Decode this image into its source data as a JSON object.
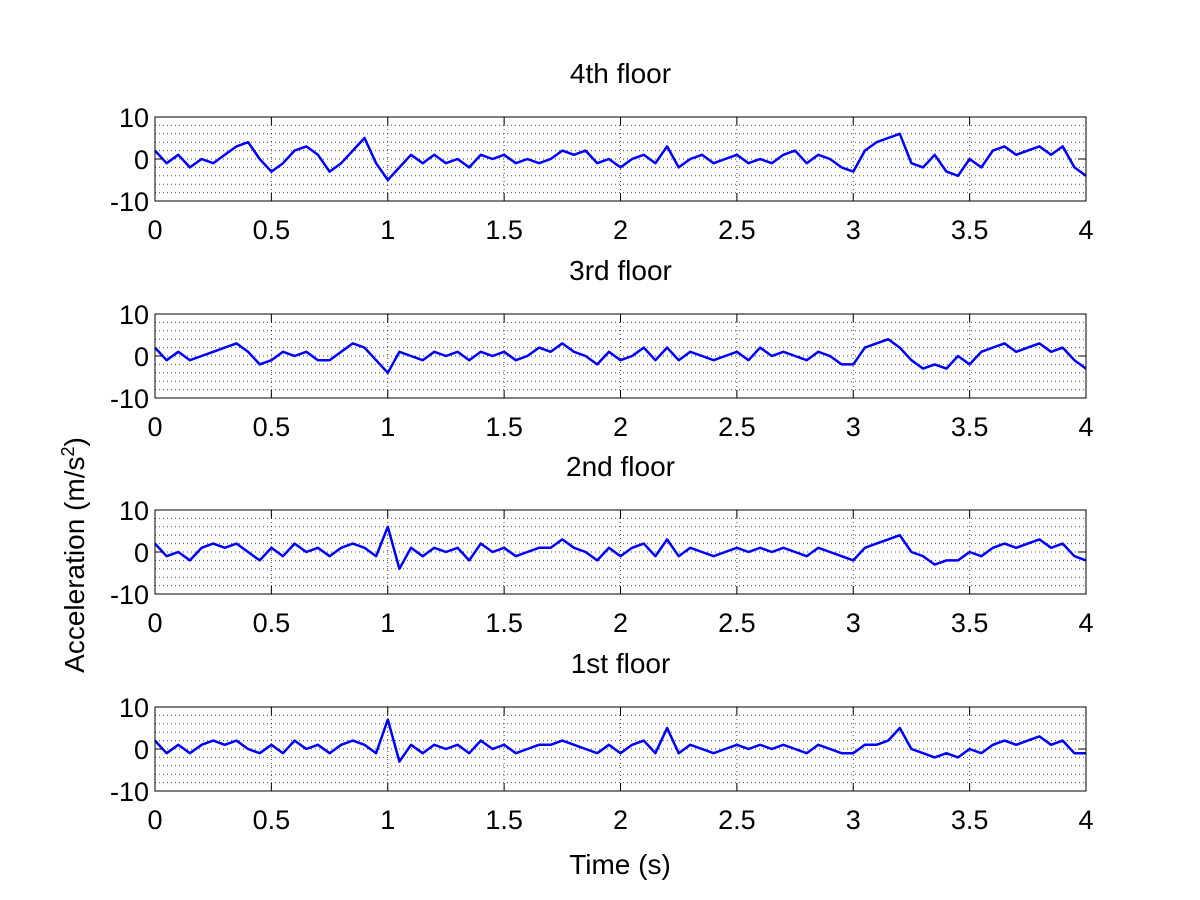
{
  "chart_data": {
    "type": "line",
    "xlabel": "Time (s)",
    "ylabel": "Acceleration (m/s",
    "ylabel_superscript": "2",
    "ylabel_close": ")",
    "line_color": "#0000ff",
    "grid": true,
    "panels": [
      {
        "title": "4th floor",
        "xlim": [
          0,
          4
        ],
        "ylim": [
          -10,
          10
        ],
        "xticks": [
          "0",
          "0.5",
          "1",
          "1.5",
          "2",
          "2.5",
          "3",
          "3.5",
          "4"
        ],
        "yticks": [
          "10",
          "0",
          "-10"
        ],
        "series": [
          {
            "x": [
              0,
              0.05,
              0.1,
              0.15,
              0.2,
              0.25,
              0.3,
              0.35,
              0.4,
              0.45,
              0.5,
              0.55,
              0.6,
              0.65,
              0.7,
              0.75,
              0.8,
              0.85,
              0.9,
              0.95,
              1.0,
              1.05,
              1.1,
              1.15,
              1.2,
              1.25,
              1.3,
              1.35,
              1.4,
              1.45,
              1.5,
              1.55,
              1.6,
              1.65,
              1.7,
              1.75,
              1.8,
              1.85,
              1.9,
              1.95,
              2.0,
              2.05,
              2.1,
              2.15,
              2.2,
              2.25,
              2.3,
              2.35,
              2.4,
              2.45,
              2.5,
              2.55,
              2.6,
              2.65,
              2.7,
              2.75,
              2.8,
              2.85,
              2.9,
              2.95,
              3.0,
              3.05,
              3.1,
              3.15,
              3.2,
              3.25,
              3.3,
              3.35,
              3.4,
              3.45,
              3.5,
              3.55,
              3.6,
              3.65,
              3.7,
              3.75,
              3.8,
              3.85,
              3.9,
              3.95,
              4.0
            ],
            "y": [
              2,
              -1,
              1,
              -2,
              0,
              -1,
              1,
              3,
              4,
              0,
              -3,
              -1,
              2,
              3,
              1,
              -3,
              -1,
              2,
              5,
              -1,
              -5,
              -2,
              1,
              -1,
              1,
              -1,
              0,
              -2,
              1,
              0,
              1,
              -1,
              0,
              -1,
              0,
              2,
              1,
              2,
              -1,
              0,
              -2,
              0,
              1,
              -1,
              3,
              -2,
              0,
              1,
              -1,
              0,
              1,
              -1,
              0,
              -1,
              1,
              2,
              -1,
              1,
              0,
              -2,
              -3,
              2,
              4,
              5,
              6,
              -1,
              -2,
              1,
              -3,
              -4,
              0,
              -2,
              2,
              3,
              1,
              2,
              3,
              1,
              3,
              -2,
              -4
            ]
          }
        ]
      },
      {
        "title": "3rd floor",
        "xlim": [
          0,
          4
        ],
        "ylim": [
          -10,
          10
        ],
        "xticks": [
          "0",
          "0.5",
          "1",
          "1.5",
          "2",
          "2.5",
          "3",
          "3.5",
          "4"
        ],
        "yticks": [
          "10",
          "0",
          "-10"
        ],
        "series": [
          {
            "x": [
              0,
              0.05,
              0.1,
              0.15,
              0.2,
              0.25,
              0.3,
              0.35,
              0.4,
              0.45,
              0.5,
              0.55,
              0.6,
              0.65,
              0.7,
              0.75,
              0.8,
              0.85,
              0.9,
              0.95,
              1.0,
              1.05,
              1.1,
              1.15,
              1.2,
              1.25,
              1.3,
              1.35,
              1.4,
              1.45,
              1.5,
              1.55,
              1.6,
              1.65,
              1.7,
              1.75,
              1.8,
              1.85,
              1.9,
              1.95,
              2.0,
              2.05,
              2.1,
              2.15,
              2.2,
              2.25,
              2.3,
              2.35,
              2.4,
              2.45,
              2.5,
              2.55,
              2.6,
              2.65,
              2.7,
              2.75,
              2.8,
              2.85,
              2.9,
              2.95,
              3.0,
              3.05,
              3.1,
              3.15,
              3.2,
              3.25,
              3.3,
              3.35,
              3.4,
              3.45,
              3.5,
              3.55,
              3.6,
              3.65,
              3.7,
              3.75,
              3.8,
              3.85,
              3.9,
              3.95,
              4.0
            ],
            "y": [
              2,
              -1,
              1,
              -1,
              0,
              1,
              2,
              3,
              1,
              -2,
              -1,
              1,
              0,
              1,
              -1,
              -1,
              1,
              3,
              2,
              -1,
              -4,
              1,
              0,
              -1,
              1,
              0,
              1,
              -1,
              1,
              0,
              1,
              -1,
              0,
              2,
              1,
              3,
              1,
              0,
              -2,
              1,
              -1,
              0,
              2,
              -1,
              2,
              -1,
              1,
              0,
              -1,
              0,
              1,
              -1,
              2,
              0,
              1,
              0,
              -1,
              1,
              0,
              -2,
              -2,
              2,
              3,
              4,
              2,
              -1,
              -3,
              -2,
              -3,
              0,
              -2,
              1,
              2,
              3,
              1,
              2,
              3,
              1,
              2,
              -1,
              -3
            ]
          }
        ]
      },
      {
        "title": "2nd floor",
        "xlim": [
          0,
          4
        ],
        "ylim": [
          -10,
          10
        ],
        "xticks": [
          "0",
          "0.5",
          "1",
          "1.5",
          "2",
          "2.5",
          "3",
          "3.5",
          "4"
        ],
        "yticks": [
          "10",
          "0",
          "-10"
        ],
        "series": [
          {
            "x": [
              0,
              0.05,
              0.1,
              0.15,
              0.2,
              0.25,
              0.3,
              0.35,
              0.4,
              0.45,
              0.5,
              0.55,
              0.6,
              0.65,
              0.7,
              0.75,
              0.8,
              0.85,
              0.9,
              0.95,
              1.0,
              1.05,
              1.1,
              1.15,
              1.2,
              1.25,
              1.3,
              1.35,
              1.4,
              1.45,
              1.5,
              1.55,
              1.6,
              1.65,
              1.7,
              1.75,
              1.8,
              1.85,
              1.9,
              1.95,
              2.0,
              2.05,
              2.1,
              2.15,
              2.2,
              2.25,
              2.3,
              2.35,
              2.4,
              2.45,
              2.5,
              2.55,
              2.6,
              2.65,
              2.7,
              2.75,
              2.8,
              2.85,
              2.9,
              2.95,
              3.0,
              3.05,
              3.1,
              3.15,
              3.2,
              3.25,
              3.3,
              3.35,
              3.4,
              3.45,
              3.5,
              3.55,
              3.6,
              3.65,
              3.7,
              3.75,
              3.8,
              3.85,
              3.9,
              3.95,
              4.0
            ],
            "y": [
              2,
              -1,
              0,
              -2,
              1,
              2,
              1,
              2,
              0,
              -2,
              1,
              -1,
              2,
              0,
              1,
              -1,
              1,
              2,
              1,
              -1,
              6,
              -4,
              1,
              -1,
              1,
              0,
              1,
              -2,
              2,
              0,
              1,
              -1,
              0,
              1,
              1,
              3,
              1,
              0,
              -2,
              1,
              -1,
              1,
              2,
              -1,
              3,
              -1,
              1,
              0,
              -1,
              0,
              1,
              0,
              1,
              0,
              1,
              0,
              -1,
              1,
              0,
              -1,
              -2,
              1,
              2,
              3,
              4,
              0,
              -1,
              -3,
              -2,
              -2,
              0,
              -1,
              1,
              2,
              1,
              2,
              3,
              1,
              2,
              -1,
              -2
            ]
          }
        ]
      },
      {
        "title": "1st floor",
        "xlim": [
          0,
          4
        ],
        "ylim": [
          -10,
          10
        ],
        "xticks": [
          "0",
          "0.5",
          "1",
          "1.5",
          "2",
          "2.5",
          "3",
          "3.5",
          "4"
        ],
        "yticks": [
          "10",
          "0",
          "-10"
        ],
        "series": [
          {
            "x": [
              0,
              0.05,
              0.1,
              0.15,
              0.2,
              0.25,
              0.3,
              0.35,
              0.4,
              0.45,
              0.5,
              0.55,
              0.6,
              0.65,
              0.7,
              0.75,
              0.8,
              0.85,
              0.9,
              0.95,
              1.0,
              1.05,
              1.1,
              1.15,
              1.2,
              1.25,
              1.3,
              1.35,
              1.4,
              1.45,
              1.5,
              1.55,
              1.6,
              1.65,
              1.7,
              1.75,
              1.8,
              1.85,
              1.9,
              1.95,
              2.0,
              2.05,
              2.1,
              2.15,
              2.2,
              2.25,
              2.3,
              2.35,
              2.4,
              2.45,
              2.5,
              2.55,
              2.6,
              2.65,
              2.7,
              2.75,
              2.8,
              2.85,
              2.9,
              2.95,
              3.0,
              3.05,
              3.1,
              3.15,
              3.2,
              3.25,
              3.3,
              3.35,
              3.4,
              3.45,
              3.5,
              3.55,
              3.6,
              3.65,
              3.7,
              3.75,
              3.8,
              3.85,
              3.9,
              3.95,
              4.0
            ],
            "y": [
              2,
              -1,
              1,
              -1,
              1,
              2,
              1,
              2,
              0,
              -1,
              1,
              -1,
              2,
              0,
              1,
              -1,
              1,
              2,
              1,
              -1,
              7,
              -3,
              1,
              -1,
              1,
              0,
              1,
              -1,
              2,
              0,
              1,
              -1,
              0,
              1,
              1,
              2,
              1,
              0,
              -1,
              1,
              -1,
              1,
              2,
              -1,
              5,
              -1,
              1,
              0,
              -1,
              0,
              1,
              0,
              1,
              0,
              1,
              0,
              -1,
              1,
              0,
              -1,
              -1,
              1,
              1,
              2,
              5,
              0,
              -1,
              -2,
              -1,
              -2,
              0,
              -1,
              1,
              2,
              1,
              2,
              3,
              1,
              2,
              -1,
              -1
            ]
          }
        ]
      }
    ]
  }
}
